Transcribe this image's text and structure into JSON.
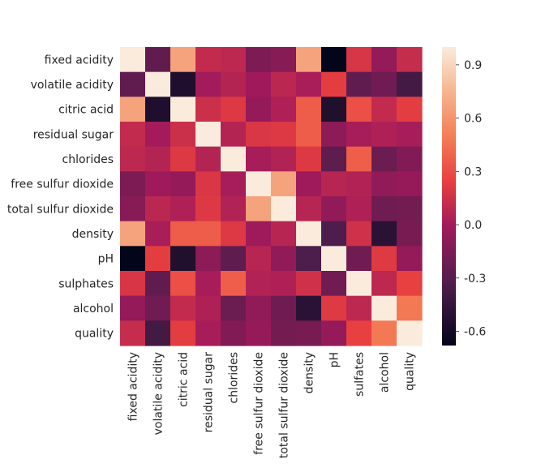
{
  "chart_data": {
    "type": "heatmap",
    "row_labels": [
      "fixed acidity",
      "volatile acidity",
      "citric acid",
      "residual sugar",
      "chlorides",
      "free sulfur dioxide",
      "total sulfur dioxide",
      "density",
      "pH",
      "sulphates",
      "alcohol",
      "quality"
    ],
    "col_labels": [
      "fixed acidity",
      "volatile acidity",
      "citric acid",
      "residual sugar",
      "chlorides",
      "free sulfur dioxide",
      "total sulfur dioxide",
      "density",
      "pH",
      "sulfates",
      "alcohol",
      "quality"
    ],
    "values": [
      [
        1.0,
        -0.26,
        0.67,
        0.11,
        0.09,
        -0.15,
        -0.11,
        0.67,
        -0.68,
        0.18,
        -0.06,
        0.12
      ],
      [
        -0.26,
        1.0,
        -0.55,
        0.0,
        0.06,
        -0.01,
        0.08,
        0.02,
        0.23,
        -0.26,
        -0.2,
        -0.39
      ],
      [
        0.67,
        -0.55,
        1.0,
        0.14,
        0.2,
        -0.06,
        0.04,
        0.36,
        -0.54,
        0.31,
        0.11,
        0.23
      ],
      [
        0.11,
        0.0,
        0.14,
        1.0,
        0.06,
        0.19,
        0.2,
        0.36,
        -0.09,
        0.01,
        0.04,
        0.01
      ],
      [
        0.09,
        0.06,
        0.2,
        0.06,
        1.0,
        0.01,
        0.05,
        0.2,
        -0.27,
        0.37,
        -0.22,
        -0.13
      ],
      [
        -0.15,
        -0.01,
        -0.06,
        0.19,
        0.01,
        1.0,
        0.67,
        -0.02,
        0.07,
        0.05,
        -0.07,
        -0.05
      ],
      [
        -0.11,
        0.08,
        0.04,
        0.2,
        0.05,
        0.67,
        1.0,
        0.07,
        -0.07,
        0.04,
        -0.21,
        -0.19
      ],
      [
        0.67,
        0.02,
        0.36,
        0.36,
        0.2,
        -0.02,
        0.07,
        1.0,
        -0.34,
        0.15,
        -0.5,
        -0.17
      ],
      [
        -0.68,
        0.23,
        -0.54,
        -0.09,
        -0.27,
        0.07,
        -0.07,
        -0.34,
        1.0,
        -0.2,
        0.21,
        -0.06
      ],
      [
        0.18,
        -0.26,
        0.31,
        0.01,
        0.37,
        0.05,
        0.04,
        0.15,
        -0.2,
        1.0,
        0.09,
        0.25
      ],
      [
        -0.06,
        -0.2,
        0.11,
        0.04,
        -0.22,
        -0.07,
        -0.21,
        -0.5,
        0.21,
        0.09,
        1.0,
        0.48
      ],
      [
        0.12,
        -0.39,
        0.23,
        0.01,
        -0.13,
        -0.05,
        -0.19,
        -0.17,
        -0.06,
        0.25,
        0.48,
        1.0
      ]
    ],
    "vmin": -0.68,
    "vmax": 1.0,
    "colorbar_ticks": [
      "0.9",
      "0.6",
      "0.3",
      "0.0",
      "-0.3",
      "-0.6"
    ],
    "colormap": "rocket",
    "grid": false
  }
}
